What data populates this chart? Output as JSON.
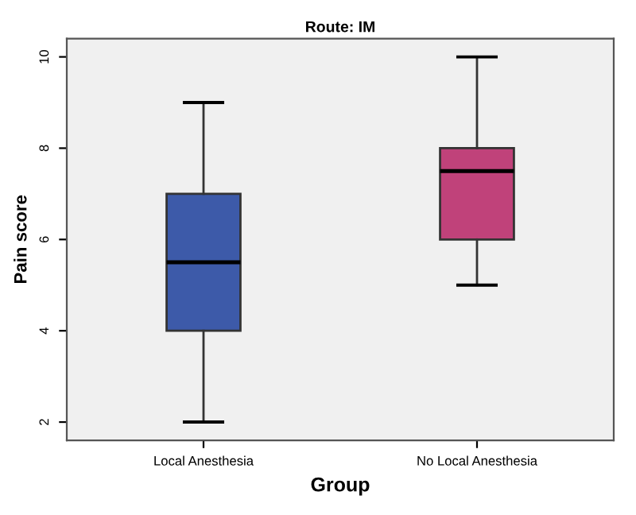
{
  "chart_data": {
    "type": "box",
    "title": "Route: IM",
    "xlabel": "Group",
    "ylabel": "Pain score",
    "categories": [
      "Local Anesthesia",
      "No Local Anesthesia"
    ],
    "colors": [
      "#3d5aa9",
      "#c0427a"
    ],
    "boxes": [
      {
        "low": 2,
        "q1": 4,
        "median": 5.5,
        "q3": 7,
        "high": 9
      },
      {
        "low": 5,
        "q1": 6,
        "median": 7.5,
        "q3": 8,
        "high": 10
      }
    ],
    "ylim": [
      1.6,
      10.4
    ],
    "yticks": [
      2,
      4,
      6,
      8,
      10
    ],
    "grid": false,
    "legend": false
  }
}
